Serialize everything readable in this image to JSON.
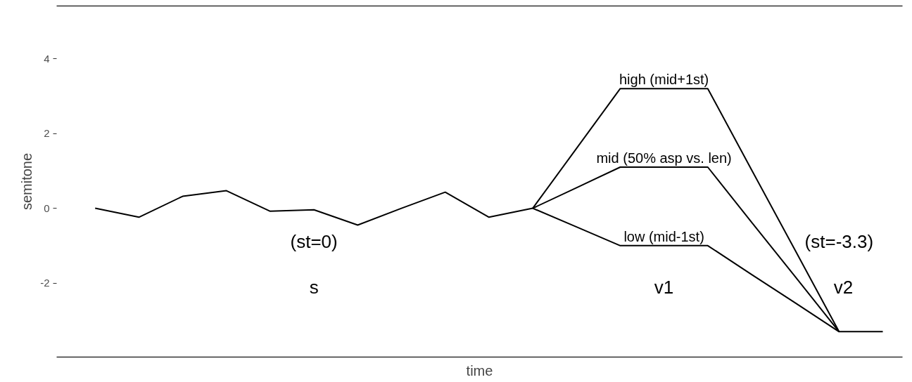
{
  "chart_data": {
    "type": "line",
    "xlabel": "time",
    "ylabel": "semitone",
    "categories": [
      null,
      null,
      null,
      null,
      null,
      null,
      null,
      null,
      null,
      null,
      null,
      null,
      null,
      null,
      null,
      null,
      null,
      null,
      null
    ],
    "series": [
      {
        "name": "high (mid+1st)",
        "color": "#000000",
        "values": [
          null,
          null,
          null,
          null,
          null,
          null,
          null,
          null,
          null,
          null,
          0,
          1.6,
          3.2,
          3.2,
          3.2,
          1.03,
          -1.13,
          -3.3,
          -3.3
        ]
      },
      {
        "name": "mid (50% asp vs. len)",
        "color": "#000000",
        "values": [
          0,
          -0.24,
          0.32,
          0.47,
          -0.08,
          -0.04,
          -0.45,
          0,
          0.43,
          -0.24,
          0,
          0.55,
          1.1,
          1.1,
          1.1,
          -0.37,
          -1.83,
          -3.3,
          null
        ]
      },
      {
        "name": "low (mid-1st)",
        "color": "#000000",
        "values": [
          null,
          null,
          null,
          null,
          null,
          null,
          null,
          null,
          null,
          null,
          0,
          -0.5,
          -1.0,
          -1.0,
          -1.0,
          -1.77,
          -2.53,
          -3.3,
          null
        ]
      }
    ],
    "annotations": [
      "(st=0)",
      "s",
      "v1",
      "(st=-3.3)",
      "v2"
    ],
    "ylim": [
      -3.98,
      5.41
    ],
    "yticks": [
      -2,
      0,
      2,
      4
    ],
    "tick_labels": "y",
    "marker": "none",
    "line_style": "solid"
  }
}
